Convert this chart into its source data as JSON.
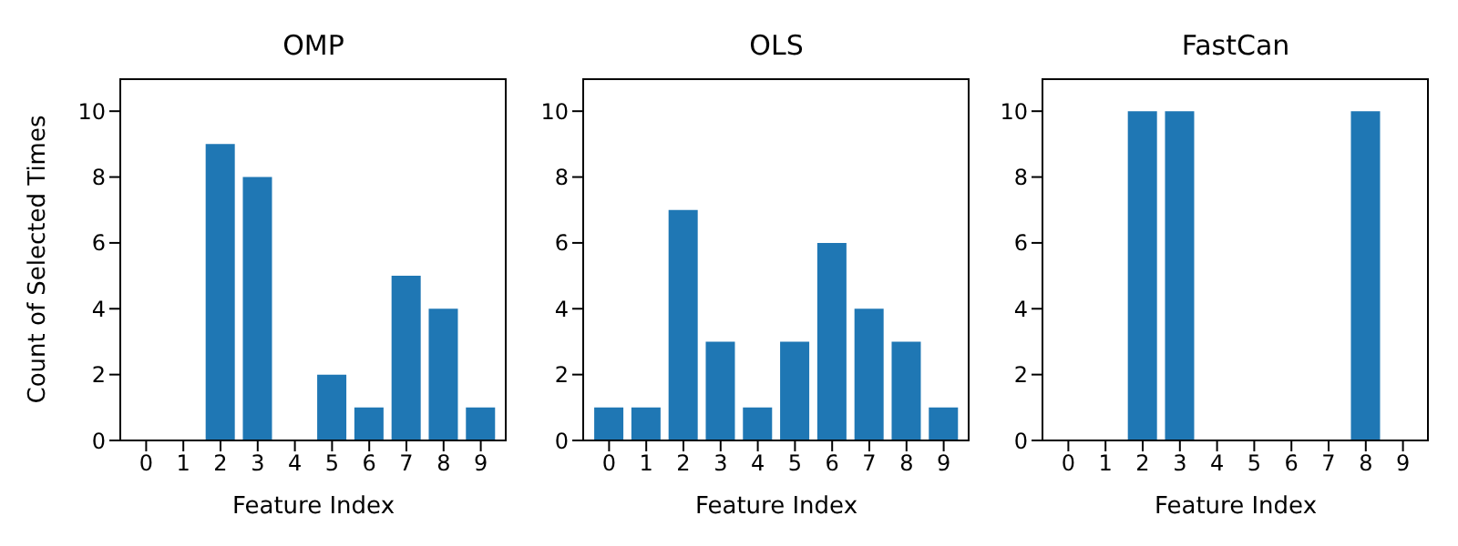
{
  "chart_data": [
    {
      "type": "bar",
      "title": "OMP",
      "xlabel": "Feature Index",
      "ylabel": "Count of Selected Times",
      "categories": [
        "0",
        "1",
        "2",
        "3",
        "4",
        "5",
        "6",
        "7",
        "8",
        "9"
      ],
      "values": [
        0,
        0,
        9,
        8,
        0,
        2,
        1,
        5,
        4,
        1
      ],
      "color": "#1f77b4",
      "ylim": [
        0,
        11
      ],
      "yticks": [
        0,
        2,
        4,
        6,
        8,
        10
      ],
      "grid": false
    },
    {
      "type": "bar",
      "title": "OLS",
      "xlabel": "Feature Index",
      "categories": [
        "0",
        "1",
        "2",
        "3",
        "4",
        "5",
        "6",
        "7",
        "8",
        "9"
      ],
      "values": [
        1,
        1,
        7,
        3,
        1,
        3,
        6,
        4,
        3,
        1
      ],
      "color": "#1f77b4",
      "ylim": [
        0,
        11
      ],
      "yticks": [
        0,
        2,
        4,
        6,
        8,
        10
      ],
      "grid": false
    },
    {
      "type": "bar",
      "title": "FastCan",
      "xlabel": "Feature Index",
      "categories": [
        "0",
        "1",
        "2",
        "3",
        "4",
        "5",
        "6",
        "7",
        "8",
        "9"
      ],
      "values": [
        0,
        0,
        10,
        10,
        0,
        0,
        0,
        0,
        10,
        0
      ],
      "color": "#1f77b4",
      "ylim": [
        0,
        11
      ],
      "yticks": [
        0,
        2,
        4,
        6,
        8,
        10
      ],
      "grid": false
    }
  ]
}
